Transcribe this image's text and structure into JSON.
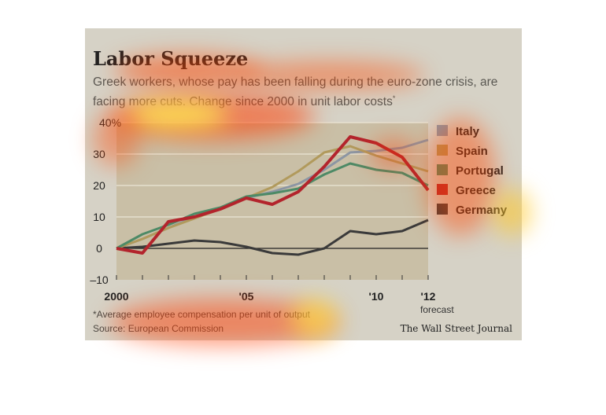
{
  "card": {
    "title": "Labor Squeeze",
    "subtitle": "Greek workers, whose pay has been falling during the euro-zone crisis, are facing more cuts. Change since 2000 in unit labor costs",
    "subtitle_mark": "*",
    "footnote": "*Average employee compensation per unit of output",
    "source": "Source: European Commission",
    "credit": "The Wall Street Journal",
    "forecast_label": "forecast"
  },
  "colors": {
    "plot_bg": "#c9bfa6",
    "Italy": "#8c96a3",
    "Spain": "#b19a5c",
    "Portugal": "#4d8a66",
    "Greece": "#b3242c",
    "Germany": "#3a3a3a"
  },
  "chart_data": {
    "type": "line",
    "x": [
      2000,
      2001,
      2002,
      2003,
      2004,
      2005,
      2006,
      2007,
      2008,
      2009,
      2010,
      2011,
      2012
    ],
    "x_tick_labels": [
      {
        "x": 2000,
        "label": "2000"
      },
      {
        "x": 2005,
        "label": "'05"
      },
      {
        "x": 2010,
        "label": "'10"
      },
      {
        "x": 2012,
        "label": "'12"
      }
    ],
    "y_tick_labels": [
      {
        "y": 40,
        "label": "40%"
      },
      {
        "y": 30,
        "label": "30"
      },
      {
        "y": 20,
        "label": "20"
      },
      {
        "y": 10,
        "label": "10"
      },
      {
        "y": 0,
        "label": "0"
      },
      {
        "y": -10,
        "label": "–10"
      }
    ],
    "ylim": [
      -10,
      40
    ],
    "xlim": [
      2000,
      2012
    ],
    "grid": true,
    "legend": "right",
    "series": [
      {
        "name": "Italy",
        "values": [
          0,
          3,
          6.5,
          10,
          12.5,
          16,
          18,
          20.5,
          25,
          30.5,
          31,
          32,
          34.5
        ]
      },
      {
        "name": "Spain",
        "values": [
          0,
          3,
          6.5,
          9.5,
          12.5,
          16,
          19.5,
          24.5,
          30.5,
          32.5,
          29.5,
          27,
          24.5
        ]
      },
      {
        "name": "Portugal",
        "values": [
          0,
          4.5,
          7.5,
          11,
          13,
          16.5,
          17.5,
          19,
          23.5,
          27,
          25,
          24,
          20
        ]
      },
      {
        "name": "Greece",
        "values": [
          0,
          -1.5,
          8.5,
          10,
          12.5,
          16,
          14,
          18,
          26,
          35.5,
          33.5,
          29,
          18.5
        ]
      },
      {
        "name": "Germany",
        "values": [
          0,
          0.5,
          1.5,
          2.5,
          2,
          0.5,
          -1.5,
          -2,
          0,
          5.5,
          4.5,
          5.5,
          9
        ]
      }
    ]
  }
}
